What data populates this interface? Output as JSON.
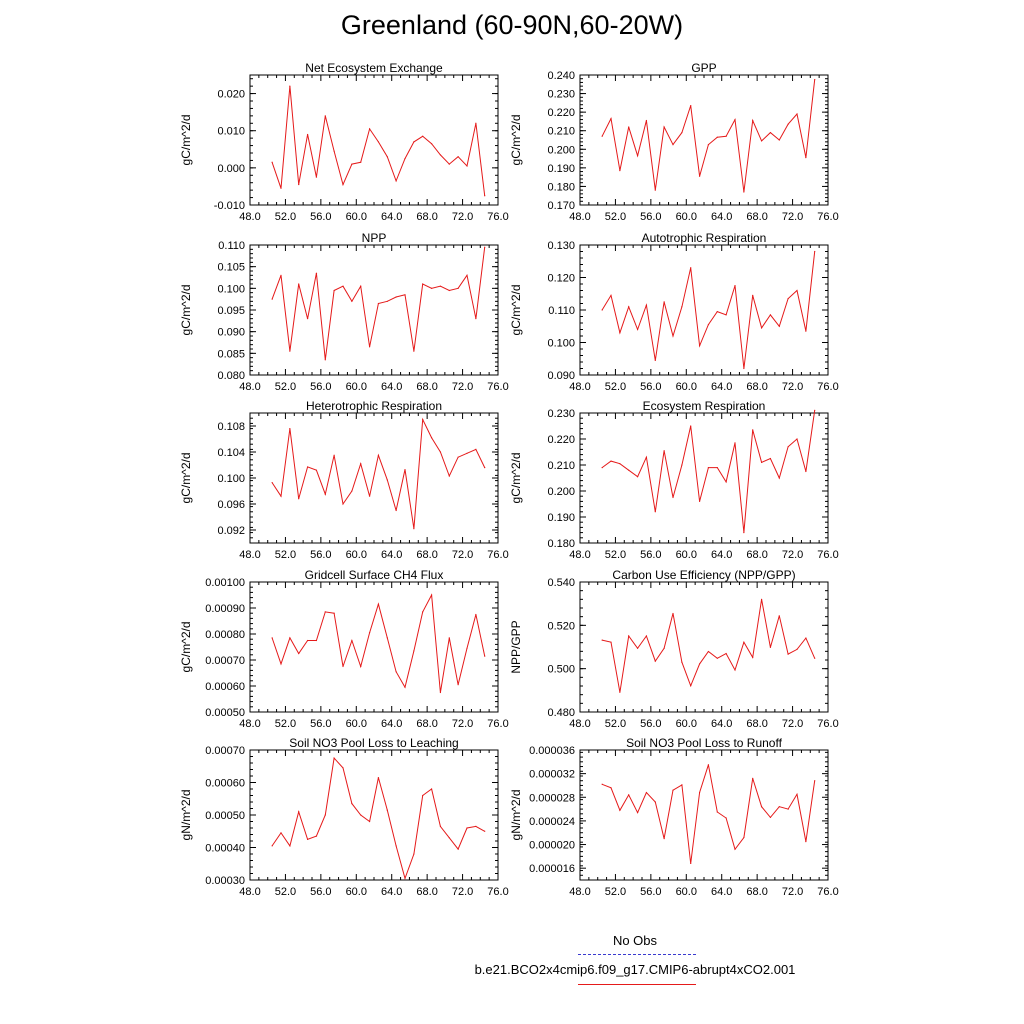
{
  "title": "Greenland (60-90N,60-20W)",
  "legend": {
    "obs_label": "No Obs",
    "case_label": "b.e21.BCO2x4cmip6.f09_g17.CMIP6-abrupt4xCO2.001",
    "obs_color": "#3a3ad0",
    "case_color": "#e51a1a"
  },
  "chart_data": [
    {
      "type": "line",
      "title": "Net Ecosystem Exchange",
      "ylabel": "gC/m^2/d",
      "xlim": [
        48,
        76
      ],
      "ylim": [
        -0.01,
        0.025
      ],
      "xticks": [
        "48.0",
        "52.0",
        "56.0",
        "60.0",
        "64.0",
        "68.0",
        "72.0",
        "76.0"
      ],
      "yticks": [
        "-0.010",
        "0.000",
        "0.010",
        "0.020"
      ],
      "series": [
        {
          "values": [
            0.0015,
            -0.0055,
            0.022,
            -0.0045,
            0.009,
            -0.0025,
            0.014,
            0.0045,
            -0.0045,
            0.001,
            0.0015,
            0.0105,
            0.007,
            0.003,
            -0.0035,
            0.0025,
            0.007,
            0.0085,
            0.0065,
            0.0035,
            0.001,
            0.003,
            0.0005,
            0.012,
            -0.0075
          ]
        }
      ]
    },
    {
      "type": "line",
      "title": "GPP",
      "ylabel": "gC/m^2/d",
      "xlim": [
        48,
        76
      ],
      "ylim": [
        0.17,
        0.24
      ],
      "xticks": [
        "48.0",
        "52.0",
        "56.0",
        "60.0",
        "64.0",
        "68.0",
        "72.0",
        "76.0"
      ],
      "yticks": [
        "0.170",
        "0.180",
        "0.190",
        "0.200",
        "0.210",
        "0.220",
        "0.230",
        "0.240"
      ],
      "series": [
        {
          "values": [
            0.207,
            0.2165,
            0.1885,
            0.212,
            0.1965,
            0.2155,
            0.178,
            0.212,
            0.2025,
            0.209,
            0.2235,
            0.1855,
            0.2025,
            0.2065,
            0.207,
            0.216,
            0.177,
            0.2155,
            0.2045,
            0.209,
            0.205,
            0.2135,
            0.219,
            0.1955,
            0.2375
          ]
        }
      ]
    },
    {
      "type": "line",
      "title": "NPP",
      "ylabel": "gC/m^2/d",
      "xlim": [
        48,
        76
      ],
      "ylim": [
        0.08,
        0.11
      ],
      "xticks": [
        "48.0",
        "52.0",
        "56.0",
        "60.0",
        "64.0",
        "68.0",
        "72.0",
        "76.0"
      ],
      "yticks": [
        "0.080",
        "0.085",
        "0.090",
        "0.095",
        "0.100",
        "0.105",
        "0.110"
      ],
      "series": [
        {
          "values": [
            0.0975,
            0.103,
            0.0855,
            0.101,
            0.093,
            0.1035,
            0.0835,
            0.0995,
            0.1005,
            0.097,
            0.1005,
            0.0865,
            0.0965,
            0.097,
            0.098,
            0.0985,
            0.0855,
            0.101,
            0.1,
            0.1005,
            0.0995,
            0.1,
            0.103,
            0.093,
            0.1095
          ]
        }
      ]
    },
    {
      "type": "line",
      "title": "Autotrophic Respiration",
      "ylabel": "gC/m^2/d",
      "xlim": [
        48,
        76
      ],
      "ylim": [
        0.09,
        0.13
      ],
      "xticks": [
        "48.0",
        "52.0",
        "56.0",
        "60.0",
        "64.0",
        "68.0",
        "72.0",
        "76.0"
      ],
      "yticks": [
        "0.090",
        "0.100",
        "0.110",
        "0.120",
        "0.130"
      ],
      "series": [
        {
          "values": [
            0.11,
            0.1145,
            0.103,
            0.111,
            0.104,
            0.1115,
            0.0945,
            0.1125,
            0.102,
            0.111,
            0.123,
            0.099,
            0.1055,
            0.1095,
            0.1085,
            0.1175,
            0.092,
            0.1145,
            0.1045,
            0.1085,
            0.105,
            0.1135,
            0.116,
            0.1035,
            0.128
          ]
        }
      ]
    },
    {
      "type": "line",
      "title": "Heterotrophic Respiration",
      "ylabel": "gC/m^2/d",
      "xlim": [
        48,
        76
      ],
      "ylim": [
        0.09,
        0.11
      ],
      "xticks": [
        "48.0",
        "52.0",
        "56.0",
        "60.0",
        "64.0",
        "68.0",
        "72.0",
        "76.0"
      ],
      "yticks": [
        "0.092",
        "0.096",
        "0.100",
        "0.104",
        "0.108"
      ],
      "series": [
        {
          "values": [
            0.0993,
            0.0972,
            0.1076,
            0.0968,
            0.1017,
            0.1012,
            0.0975,
            0.1035,
            0.096,
            0.098,
            0.1022,
            0.0972,
            0.1035,
            0.0997,
            0.095,
            0.1013,
            0.0922,
            0.109,
            0.1062,
            0.104,
            0.1003,
            0.1032,
            0.1038,
            0.1044,
            0.1016
          ]
        }
      ]
    },
    {
      "type": "line",
      "title": "Ecosystem Respiration",
      "ylabel": "gC/m^2/d",
      "xlim": [
        48,
        76
      ],
      "ylim": [
        0.18,
        0.23
      ],
      "xticks": [
        "48.0",
        "52.0",
        "56.0",
        "60.0",
        "64.0",
        "68.0",
        "72.0",
        "76.0"
      ],
      "yticks": [
        "0.180",
        "0.190",
        "0.200",
        "0.210",
        "0.220",
        "0.230"
      ],
      "series": [
        {
          "values": [
            0.209,
            0.2115,
            0.2105,
            0.208,
            0.2055,
            0.213,
            0.192,
            0.2155,
            0.1975,
            0.21,
            0.225,
            0.196,
            0.209,
            0.209,
            0.2035,
            0.2185,
            0.184,
            0.2235,
            0.211,
            0.2125,
            0.205,
            0.217,
            0.22,
            0.2075,
            0.231
          ]
        }
      ]
    },
    {
      "type": "line",
      "title": "Gridcell Surface CH4 Flux",
      "ylabel": "gC/m^2/d",
      "xlim": [
        48,
        76
      ],
      "ylim": [
        0.0005,
        0.001
      ],
      "xticks": [
        "48.0",
        "52.0",
        "56.0",
        "60.0",
        "64.0",
        "68.0",
        "72.0",
        "76.0"
      ],
      "yticks": [
        "0.00050",
        "0.00060",
        "0.00070",
        "0.00080",
        "0.00090",
        "0.00100"
      ],
      "series": [
        {
          "values": [
            0.000785,
            0.000685,
            0.000785,
            0.000725,
            0.000775,
            0.000775,
            0.000885,
            0.00088,
            0.000675,
            0.000775,
            0.000675,
            0.000805,
            0.000915,
            0.000785,
            0.000655,
            0.000595,
            0.000735,
            0.000885,
            0.00095,
            0.000575,
            0.000785,
            0.000605,
            0.000745,
            0.000875,
            0.000715
          ]
        }
      ]
    },
    {
      "type": "line",
      "title": "Carbon Use Efficiency (NPP/GPP)",
      "ylabel": "NPP/GPP",
      "xlim": [
        48,
        76
      ],
      "ylim": [
        0.48,
        0.54
      ],
      "xticks": [
        "48.0",
        "52.0",
        "56.0",
        "60.0",
        "64.0",
        "68.0",
        "72.0",
        "76.0"
      ],
      "yticks": [
        "0.480",
        "0.500",
        "0.520",
        "0.540"
      ],
      "series": [
        {
          "values": [
            0.5132,
            0.5122,
            0.4891,
            0.5151,
            0.5094,
            0.5151,
            0.5035,
            0.5094,
            0.5255,
            0.503,
            0.4921,
            0.5022,
            0.5079,
            0.5048,
            0.507,
            0.4994,
            0.5122,
            0.5052,
            0.532,
            0.5098,
            0.5244,
            0.5067,
            0.5089,
            0.5141,
            0.5048
          ]
        }
      ]
    },
    {
      "type": "line",
      "title": "Soil NO3 Pool Loss to Leaching",
      "ylabel": "gN/m^2/d",
      "xlim": [
        48,
        76
      ],
      "ylim": [
        0.0003,
        0.0007
      ],
      "xticks": [
        "48.0",
        "52.0",
        "56.0",
        "60.0",
        "64.0",
        "68.0",
        "72.0",
        "76.0"
      ],
      "yticks": [
        "0.00030",
        "0.00040",
        "0.00050",
        "0.00060",
        "0.00070"
      ],
      "series": [
        {
          "values": [
            0.000405,
            0.000445,
            0.000405,
            0.00051,
            0.000425,
            0.000435,
            0.0005,
            0.000675,
            0.000645,
            0.000535,
            0.0005,
            0.00048,
            0.000615,
            0.000515,
            0.000405,
            0.000305,
            0.00038,
            0.00056,
            0.00058,
            0.000465,
            0.00043,
            0.000395,
            0.00046,
            0.000465,
            0.00045
          ]
        }
      ]
    },
    {
      "type": "line",
      "title": "Soil NO3 Pool Loss to Runoff",
      "ylabel": "gN/m^2/d",
      "xlim": [
        48,
        76
      ],
      "ylim": [
        1.4e-05,
        3.6e-05
      ],
      "xticks": [
        "48.0",
        "52.0",
        "56.0",
        "60.0",
        "64.0",
        "68.0",
        "72.0",
        "76.0"
      ],
      "yticks": [
        "0.000016",
        "0.000020",
        "0.000024",
        "0.000028",
        "0.000032",
        "0.000036"
      ],
      "series": [
        {
          "values": [
            3.02e-05,
            2.96e-05,
            2.58e-05,
            2.84e-05,
            2.54e-05,
            2.88e-05,
            2.72e-05,
            2.1e-05,
            2.92e-05,
            3.01e-05,
            1.68e-05,
            2.88e-05,
            3.35e-05,
            2.55e-05,
            2.45e-05,
            1.92e-05,
            2.12e-05,
            3.12e-05,
            2.64e-05,
            2.46e-05,
            2.64e-05,
            2.6e-05,
            2.85e-05,
            2.05e-05,
            3.08e-05
          ]
        }
      ]
    }
  ]
}
